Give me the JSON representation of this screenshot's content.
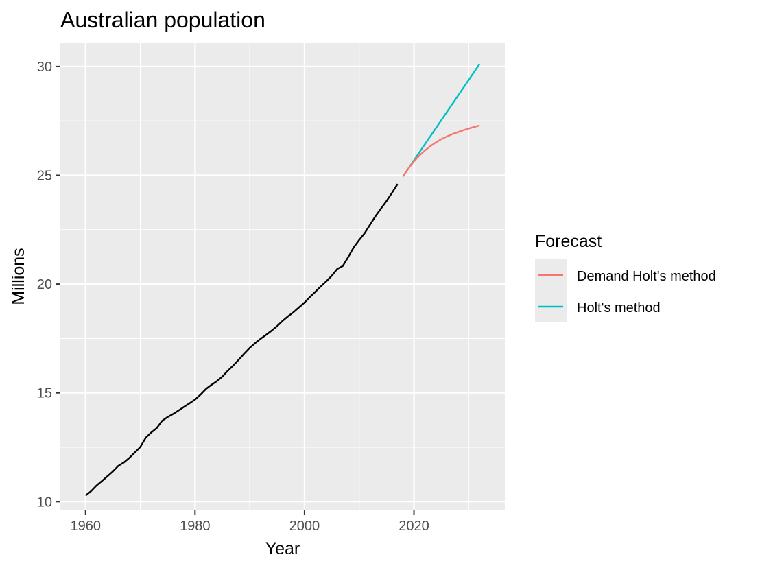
{
  "chart_data": {
    "type": "line",
    "title": "Australian population",
    "xlabel": "Year",
    "ylabel": "Millions",
    "xlim": [
      1955.4,
      2036.6
    ],
    "ylim": [
      9.6,
      31.1
    ],
    "xticks": [
      1960,
      1980,
      2000,
      2020
    ],
    "yticks": [
      10,
      15,
      20,
      25,
      30
    ],
    "grid": true,
    "legend": {
      "title": "Forecast",
      "placement": "right",
      "entries": [
        {
          "name": "Demand Holt's method",
          "color": "#F8766D"
        },
        {
          "name": "Holt's method",
          "color": "#00BFC4"
        }
      ]
    },
    "series": [
      {
        "name": "",
        "color": "#000000",
        "x": [
          1960,
          1961,
          1962,
          1963,
          1964,
          1965,
          1966,
          1967,
          1968,
          1969,
          1970,
          1971,
          1972,
          1973,
          1974,
          1975,
          1976,
          1977,
          1978,
          1979,
          1980,
          1981,
          1982,
          1983,
          1984,
          1985,
          1986,
          1987,
          1988,
          1989,
          1990,
          1991,
          1992,
          1993,
          1994,
          1995,
          1996,
          1997,
          1998,
          1999,
          2000,
          2001,
          2002,
          2003,
          2004,
          2005,
          2006,
          2007,
          2008,
          2009,
          2010,
          2011,
          2012,
          2013,
          2014,
          2015,
          2016,
          2017
        ],
        "y": [
          10.28,
          10.48,
          10.74,
          10.95,
          11.17,
          11.39,
          11.65,
          11.8,
          12.01,
          12.26,
          12.51,
          12.94,
          13.18,
          13.38,
          13.72,
          13.89,
          14.03,
          14.19,
          14.36,
          14.52,
          14.69,
          14.92,
          15.18,
          15.37,
          15.54,
          15.75,
          16.02,
          16.26,
          16.53,
          16.81,
          17.07,
          17.29,
          17.49,
          17.67,
          17.86,
          18.07,
          18.31,
          18.52,
          18.71,
          18.93,
          19.15,
          19.41,
          19.65,
          19.9,
          20.13,
          20.39,
          20.7,
          20.83,
          21.25,
          21.69,
          22.03,
          22.34,
          22.74,
          23.13,
          23.48,
          23.82,
          24.2,
          24.6
        ]
      },
      {
        "name": "Holt's method",
        "color": "#00BFC4",
        "x": [
          2018,
          2032
        ],
        "y": [
          24.95,
          30.12
        ]
      },
      {
        "name": "Demand Holt's method",
        "color": "#F8766D",
        "x": [
          2018,
          2019,
          2020,
          2021,
          2022,
          2023,
          2024,
          2025,
          2026,
          2027,
          2028,
          2029,
          2030,
          2031,
          2032
        ],
        "y": [
          24.95,
          25.32,
          25.64,
          25.91,
          26.14,
          26.34,
          26.51,
          26.66,
          26.78,
          26.89,
          26.98,
          27.07,
          27.15,
          27.22,
          27.29
        ]
      }
    ]
  }
}
